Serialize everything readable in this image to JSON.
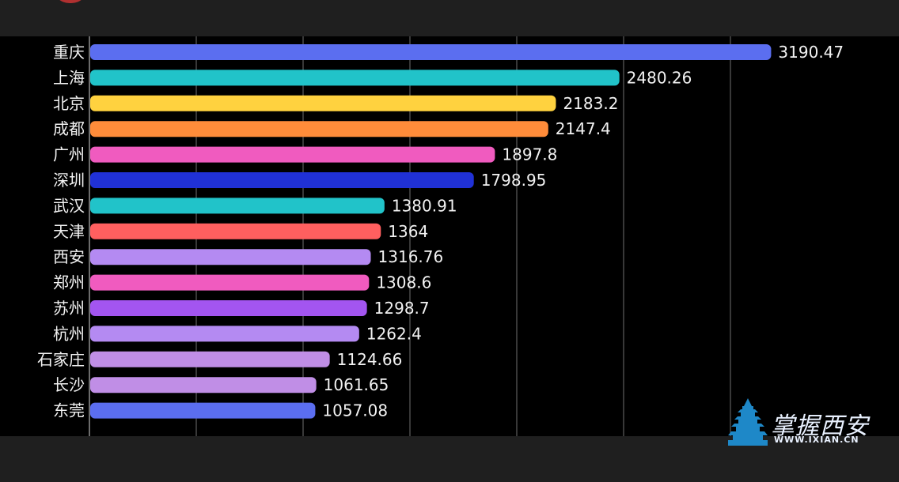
{
  "chart_data": {
    "type": "bar",
    "orientation": "horizontal",
    "categories": [
      "重庆",
      "上海",
      "北京",
      "成都",
      "广州",
      "深圳",
      "武汉",
      "天津",
      "西安",
      "郑州",
      "苏州",
      "杭州",
      "石家庄",
      "长沙",
      "东莞"
    ],
    "values": [
      3190.47,
      2480.26,
      2183.2,
      2147.4,
      1897.8,
      1798.95,
      1380.91,
      1364,
      1316.76,
      1308.6,
      1298.7,
      1262.4,
      1124.66,
      1061.65,
      1057.08
    ],
    "value_labels": [
      "3190.47",
      "2480.26",
      "2183.2",
      "2147.4",
      "1897.8",
      "1798.95",
      "1380.91",
      "1364",
      "1316.76",
      "1308.6",
      "1298.7",
      "1262.4",
      "1124.66",
      "1061.65",
      "1057.08"
    ],
    "colors": [
      "#5b6ef0",
      "#21c3c9",
      "#ffd23f",
      "#ff8c3a",
      "#f05bbf",
      "#2031d6",
      "#21c3c9",
      "#ff5f5f",
      "#b48af2",
      "#f05bbf",
      "#a355f0",
      "#b48af2",
      "#c08ee6",
      "#c08ee6",
      "#5b6ef0"
    ],
    "xlim": [
      0,
      3450
    ],
    "grid": true,
    "grid_ticks": [
      0,
      500,
      1000,
      1500,
      2000,
      2500,
      3000
    ],
    "title": "",
    "xlabel": "",
    "ylabel": ""
  },
  "watermark": {
    "text": "掌握西安",
    "url": "WWW.IXIAN.CN"
  }
}
